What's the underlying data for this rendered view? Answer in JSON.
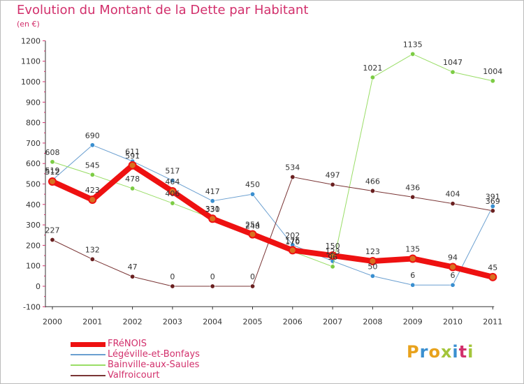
{
  "title": "Evolution du Montant de la Dette par Habitant",
  "subtitle": "(en €)",
  "logo": {
    "text": "Proxiti",
    "colors": [
      "#e8a21c",
      "#3a8fd0",
      "#e8a21c",
      "#a3c53a",
      "#3a8fd0",
      "#d2306c",
      "#a3c53a"
    ]
  },
  "chart_data": {
    "type": "line",
    "title": "Evolution du Montant de la Dette par Habitant",
    "subtitle": "(en €)",
    "x": [
      "2000",
      "2001",
      "2002",
      "2003",
      "2004",
      "2005",
      "2006",
      "2007",
      "2008",
      "2009",
      "2010",
      "2011"
    ],
    "ylim": [
      -100,
      1200
    ],
    "yticks": [
      -100,
      0,
      100,
      200,
      300,
      400,
      500,
      600,
      700,
      800,
      900,
      1000,
      1100,
      1200
    ],
    "grid": false,
    "legend_position": "bottom-left",
    "series": [
      {
        "name": "FRéNOIS",
        "color": "#ee1111",
        "marker": "#d87020",
        "width": 8,
        "values": [
          512,
          423,
          591,
          464,
          330,
          254,
          176,
          150,
          123,
          135,
          94,
          45
        ],
        "labels": [
          "512",
          "423",
          "591",
          "464",
          "330",
          "254",
          "176",
          "150",
          "123",
          "135",
          "94",
          "45"
        ]
      },
      {
        "name": "Légéville-et-Bonfays",
        "color": "#6a9fd0",
        "marker": "#3a8fd0",
        "width": 1,
        "values": [
          519,
          690,
          611,
          517,
          417,
          450,
          202,
          123,
          50,
          6,
          6,
          391
        ],
        "labels": [
          "519",
          "690",
          "611",
          "517",
          "417",
          "450",
          "202",
          "123",
          "50",
          "6",
          "6",
          "391"
        ]
      },
      {
        "name": "Bainville-aux-Saules",
        "color": "#99dd66",
        "marker": "#7ccc44",
        "width": 1,
        "values": [
          608,
          545,
          478,
          406,
          331,
          248,
          170,
          96,
          1021,
          1135,
          1047,
          1004
        ],
        "labels": [
          "608",
          "545",
          "478",
          "406",
          "331",
          "248",
          "170",
          "96",
          "1021",
          "1135",
          "1047",
          "1004"
        ]
      },
      {
        "name": "Valfroicourt",
        "color": "#7a3535",
        "marker": "#6a2020",
        "width": 1,
        "values": [
          227,
          132,
          47,
          0,
          0,
          0,
          534,
          497,
          466,
          436,
          404,
          369
        ],
        "labels": [
          "227",
          "132",
          "47",
          "0",
          "0",
          "0",
          "534",
          "497",
          "466",
          "436",
          "404",
          "369"
        ]
      }
    ]
  }
}
